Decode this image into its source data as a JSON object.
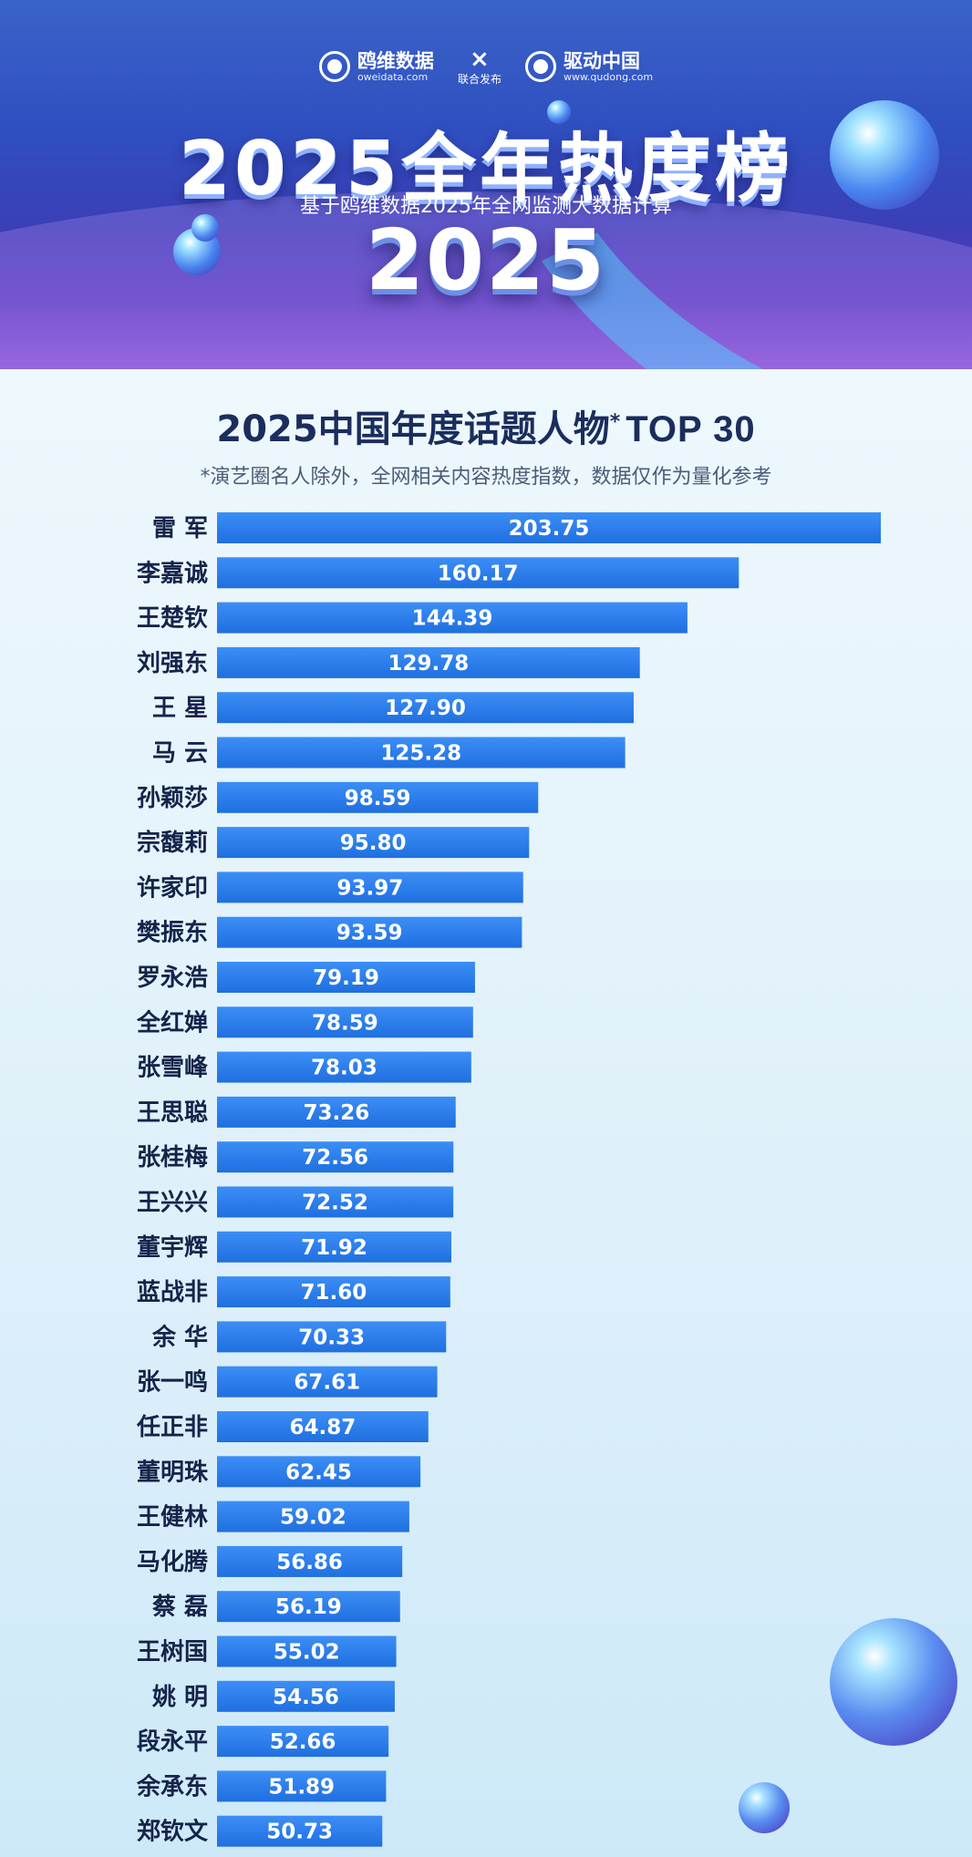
{
  "banner": {
    "logo_left_name": "鸥维数据",
    "logo_left_url": "oweidata.com",
    "cross": "×",
    "joint_release": "联合发布",
    "logo_right_name": "驱动中国",
    "logo_right_url": "www.qudong.com",
    "title": "2025全年热度榜",
    "subtitle": "基于鸥维数据2025年全网监测大数据计算",
    "year": "2025"
  },
  "chart_header": {
    "title_main": "2025中国年度话题人物",
    "title_star": "*",
    "title_top": "TOP 30",
    "note": "*演艺圈名人除外，全网相关内容热度指数，数据仅作为量化参考"
  },
  "chart_data": {
    "type": "bar",
    "orientation": "horizontal",
    "bar_color": "#1f6fe0",
    "categories": [
      "雷 军",
      "李嘉诚",
      "王楚钦",
      "刘强东",
      "王 星",
      "马 云",
      "孙颖莎",
      "宗馥莉",
      "许家印",
      "樊振东",
      "罗永浩",
      "全红婵",
      "张雪峰",
      "王思聪",
      "张桂梅",
      "王兴兴",
      "董宇辉",
      "蓝战非",
      "余 华",
      "张一鸣",
      "任正非",
      "董明珠",
      "王健林",
      "马化腾",
      "蔡 磊",
      "王树国",
      "姚 明",
      "段永平",
      "余承东",
      "郑钦文"
    ],
    "values": [
      203.75,
      160.17,
      144.39,
      129.78,
      127.9,
      125.28,
      98.59,
      95.8,
      93.97,
      93.59,
      79.19,
      78.59,
      78.03,
      73.26,
      72.56,
      72.52,
      71.92,
      71.6,
      70.33,
      67.61,
      64.87,
      62.45,
      59.02,
      56.86,
      56.19,
      55.02,
      54.56,
      52.66,
      51.89,
      50.73
    ],
    "value_labels": [
      "203.75",
      "160.17",
      "144.39",
      "129.78",
      "127.90",
      "125.28",
      "98.59",
      "95.80",
      "93.97",
      "93.59",
      "79.19",
      "78.59",
      "78.03",
      "73.26",
      "72.56",
      "72.52",
      "71.92",
      "71.60",
      "70.33",
      "67.61",
      "64.87",
      "62.45",
      "59.02",
      "56.86",
      "56.19",
      "55.02",
      "54.56",
      "52.66",
      "51.89",
      "50.73"
    ]
  }
}
